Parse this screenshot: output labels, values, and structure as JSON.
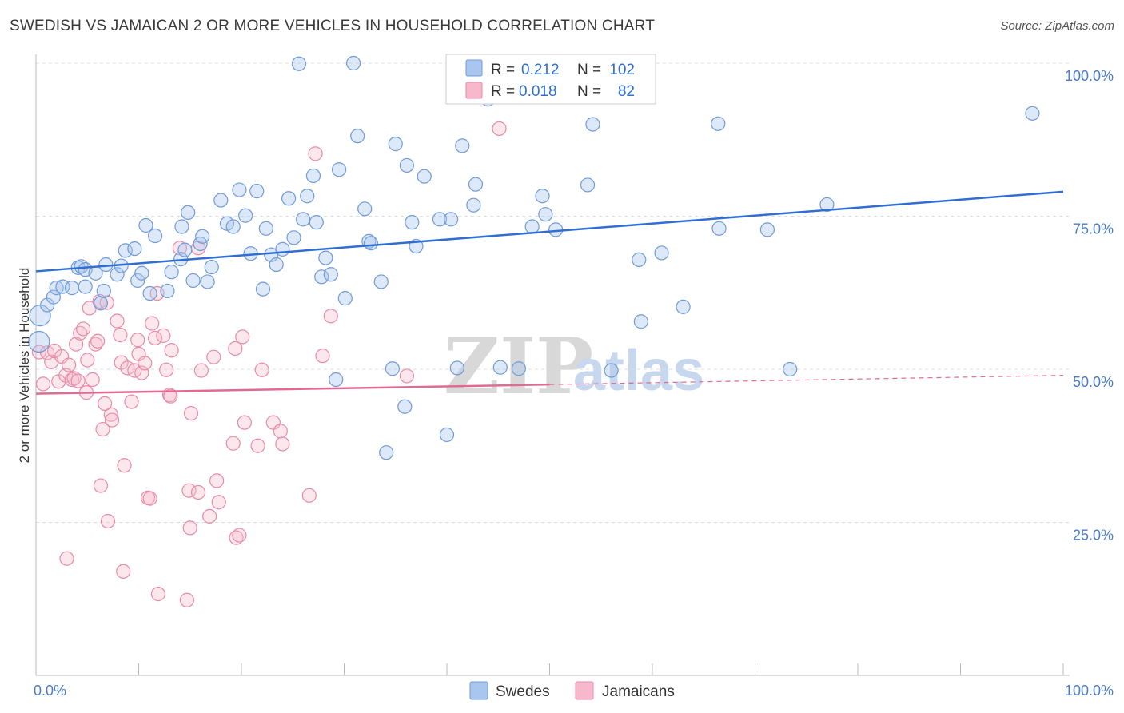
{
  "title": "SWEDISH VS JAMAICAN 2 OR MORE VEHICLES IN HOUSEHOLD CORRELATION CHART",
  "source": "Source: ZipAtlas.com",
  "watermark": {
    "zip": "ZIP",
    "atlas": "atlas"
  },
  "colors": {
    "swedes_fill": "#a9c6ee",
    "swedes_stroke": "#6f9bd8",
    "swedes_line": "#2f6fd4",
    "jamaicans_fill": "#f6b9cc",
    "jamaicans_stroke": "#e88aa8",
    "jamaicans_line": "#e06a94",
    "tick_label": "#4a7cc9",
    "grid": "#dddddd"
  },
  "legend": {
    "r_label": "R =",
    "n_label": "N =",
    "rows": [
      {
        "r": "0.212",
        "n": "102",
        "series": "swedes"
      },
      {
        "r": "0.018",
        "n": "82",
        "series": "jamaicans"
      }
    ]
  },
  "bottom_legend": [
    {
      "label": "Swedes",
      "series": "swedes"
    },
    {
      "label": "Jamaicans",
      "series": "jamaicans"
    }
  ],
  "chart_data": {
    "type": "scatter",
    "title": "SWEDISH VS JAMAICAN 2 OR MORE VEHICLES IN HOUSEHOLD CORRELATION CHART",
    "xlabel": "",
    "ylabel": "2 or more Vehicles in Household",
    "xlim": [
      0,
      100
    ],
    "ylim": [
      0,
      105
    ],
    "x_tick_labels": [
      "0.0%",
      "100.0%"
    ],
    "y_ticks": [
      25,
      50,
      75,
      100
    ],
    "y_tick_labels": [
      "25.0%",
      "50.0%",
      "75.0%",
      "100.0%"
    ],
    "grid": true,
    "legend_placement": "top-center",
    "series": [
      {
        "name": "Swedes",
        "trend": {
          "x": [
            0,
            100
          ],
          "y": [
            66.0,
            79.0
          ]
        },
        "points": [
          [
            0.3,
            54.5
          ],
          [
            0.4,
            58.8
          ],
          [
            1.1,
            60.5
          ],
          [
            1.7,
            61.8
          ],
          [
            2.0,
            63.3
          ],
          [
            2.6,
            63.5
          ],
          [
            3.5,
            63.3
          ],
          [
            4.1,
            66.6
          ],
          [
            4.4,
            66.8
          ],
          [
            4.8,
            63.5
          ],
          [
            4.8,
            66.3
          ],
          [
            5.8,
            65.7
          ],
          [
            6.3,
            60.8
          ],
          [
            6.6,
            62.8
          ],
          [
            6.8,
            67.1
          ],
          [
            7.9,
            65.5
          ],
          [
            8.3,
            66.9
          ],
          [
            8.7,
            69.4
          ],
          [
            9.6,
            69.7
          ],
          [
            9.9,
            64.5
          ],
          [
            10.3,
            65.7
          ],
          [
            10.7,
            73.5
          ],
          [
            11.1,
            62.4
          ],
          [
            11.6,
            71.8
          ],
          [
            12.8,
            62.8
          ],
          [
            13.2,
            65.9
          ],
          [
            14.1,
            68.0
          ],
          [
            14.5,
            69.5
          ],
          [
            14.2,
            73.3
          ],
          [
            15.3,
            64.5
          ],
          [
            16.0,
            70.5
          ],
          [
            16.2,
            71.7
          ],
          [
            16.7,
            64.3
          ],
          [
            17.1,
            66.7
          ],
          [
            18.0,
            77.6
          ],
          [
            18.6,
            73.8
          ],
          [
            19.2,
            73.3
          ],
          [
            19.8,
            79.3
          ],
          [
            20.4,
            75.1
          ],
          [
            20.9,
            68.9
          ],
          [
            21.5,
            79.1
          ],
          [
            22.1,
            63.1
          ],
          [
            22.4,
            73.0
          ],
          [
            22.9,
            68.7
          ],
          [
            23.4,
            67.1
          ],
          [
            24.0,
            69.6
          ],
          [
            24.6,
            77.9
          ],
          [
            25.1,
            71.5
          ],
          [
            25.6,
            99.9
          ],
          [
            26.0,
            74.5
          ],
          [
            26.4,
            78.3
          ],
          [
            27.0,
            81.6
          ],
          [
            27.3,
            74.0
          ],
          [
            27.8,
            65.1
          ],
          [
            28.2,
            68.2
          ],
          [
            28.7,
            65.5
          ],
          [
            29.5,
            82.6
          ],
          [
            30.1,
            61.6
          ],
          [
            30.9,
            100.0
          ],
          [
            31.3,
            88.1
          ],
          [
            32.0,
            76.2
          ],
          [
            32.4,
            70.9
          ],
          [
            32.6,
            70.6
          ],
          [
            33.6,
            64.3
          ],
          [
            34.1,
            36.4
          ],
          [
            34.7,
            50.1
          ],
          [
            35.0,
            86.8
          ],
          [
            35.9,
            43.9
          ],
          [
            36.1,
            83.3
          ],
          [
            36.6,
            74.0
          ],
          [
            37.0,
            70.1
          ],
          [
            37.8,
            81.5
          ],
          [
            39.3,
            74.5
          ],
          [
            40.0,
            39.3
          ],
          [
            40.4,
            74.5
          ],
          [
            41.0,
            50.2
          ],
          [
            41.5,
            86.5
          ],
          [
            42.6,
            76.8
          ],
          [
            42.8,
            80.2
          ],
          [
            44.0,
            94.1
          ],
          [
            45.2,
            50.3
          ],
          [
            47.0,
            50.1
          ],
          [
            48.3,
            73.3
          ],
          [
            49.3,
            78.3
          ],
          [
            49.6,
            75.3
          ],
          [
            50.6,
            72.8
          ],
          [
            53.7,
            80.1
          ],
          [
            54.2,
            90.0
          ],
          [
            56.0,
            49.8
          ],
          [
            58.7,
            67.9
          ],
          [
            58.9,
            57.8
          ],
          [
            60.9,
            69.0
          ],
          [
            63.0,
            60.2
          ],
          [
            66.4,
            90.1
          ],
          [
            71.2,
            72.8
          ],
          [
            73.4,
            50.0
          ],
          [
            77.0,
            76.9
          ],
          [
            97.0,
            91.8
          ],
          [
            66.5,
            73.0
          ],
          [
            52.3,
            100.0
          ],
          [
            29.2,
            48.3
          ],
          [
            14.8,
            75.6
          ]
        ]
      },
      {
        "name": "Jamaicans",
        "trend": {
          "x": [
            0,
            100
          ],
          "y": [
            46.0,
            49.0
          ]
        },
        "trend_solid_until_x": 50,
        "points": [
          [
            0.3,
            52.8
          ],
          [
            0.7,
            47.6
          ],
          [
            1.1,
            52.7
          ],
          [
            1.5,
            51.2
          ],
          [
            1.8,
            53.0
          ],
          [
            2.2,
            48.0
          ],
          [
            2.5,
            52.1
          ],
          [
            2.9,
            49.0
          ],
          [
            3.0,
            19.1
          ],
          [
            3.2,
            50.7
          ],
          [
            3.5,
            48.3
          ],
          [
            3.7,
            48.5
          ],
          [
            3.9,
            54.1
          ],
          [
            4.1,
            48.1
          ],
          [
            4.3,
            55.9
          ],
          [
            4.6,
            56.6
          ],
          [
            4.9,
            46.2
          ],
          [
            5.0,
            51.5
          ],
          [
            5.2,
            60.0
          ],
          [
            5.5,
            48.3
          ],
          [
            5.8,
            54.1
          ],
          [
            6.0,
            54.6
          ],
          [
            6.2,
            61.1
          ],
          [
            6.3,
            31.0
          ],
          [
            6.5,
            40.2
          ],
          [
            6.9,
            60.9
          ],
          [
            7.0,
            25.2
          ],
          [
            7.3,
            42.6
          ],
          [
            7.4,
            41.7
          ],
          [
            7.9,
            57.9
          ],
          [
            8.2,
            55.6
          ],
          [
            8.3,
            51.1
          ],
          [
            8.5,
            17.0
          ],
          [
            8.6,
            34.3
          ],
          [
            8.9,
            50.2
          ],
          [
            9.3,
            44.7
          ],
          [
            9.6,
            49.8
          ],
          [
            9.9,
            54.8
          ],
          [
            10.0,
            52.5
          ],
          [
            10.3,
            49.4
          ],
          [
            10.6,
            51.0
          ],
          [
            10.9,
            29.0
          ],
          [
            11.1,
            28.9
          ],
          [
            11.3,
            57.5
          ],
          [
            11.6,
            55.1
          ],
          [
            11.8,
            62.4
          ],
          [
            11.9,
            13.3
          ],
          [
            12.4,
            55.5
          ],
          [
            12.7,
            49.9
          ],
          [
            13.0,
            45.8
          ],
          [
            13.2,
            53.1
          ],
          [
            14.0,
            69.8
          ],
          [
            14.7,
            12.3
          ],
          [
            14.9,
            30.2
          ],
          [
            15.0,
            24.1
          ],
          [
            15.1,
            42.8
          ],
          [
            15.8,
            69.8
          ],
          [
            15.8,
            29.9
          ],
          [
            16.1,
            49.8
          ],
          [
            16.9,
            26.0
          ],
          [
            17.3,
            52.0
          ],
          [
            17.6,
            31.8
          ],
          [
            17.8,
            28.3
          ],
          [
            19.2,
            37.9
          ],
          [
            19.4,
            53.4
          ],
          [
            19.5,
            22.5
          ],
          [
            19.8,
            22.9
          ],
          [
            20.1,
            55.3
          ],
          [
            20.3,
            41.3
          ],
          [
            21.6,
            37.5
          ],
          [
            22.0,
            49.9
          ],
          [
            23.1,
            41.3
          ],
          [
            23.8,
            39.9
          ],
          [
            24.0,
            37.8
          ],
          [
            26.6,
            29.4
          ],
          [
            27.2,
            85.2
          ],
          [
            27.9,
            52.2
          ],
          [
            28.7,
            58.7
          ],
          [
            36.1,
            48.9
          ],
          [
            45.1,
            89.3
          ],
          [
            13.1,
            45.6
          ],
          [
            6.7,
            44.4
          ]
        ]
      }
    ]
  }
}
